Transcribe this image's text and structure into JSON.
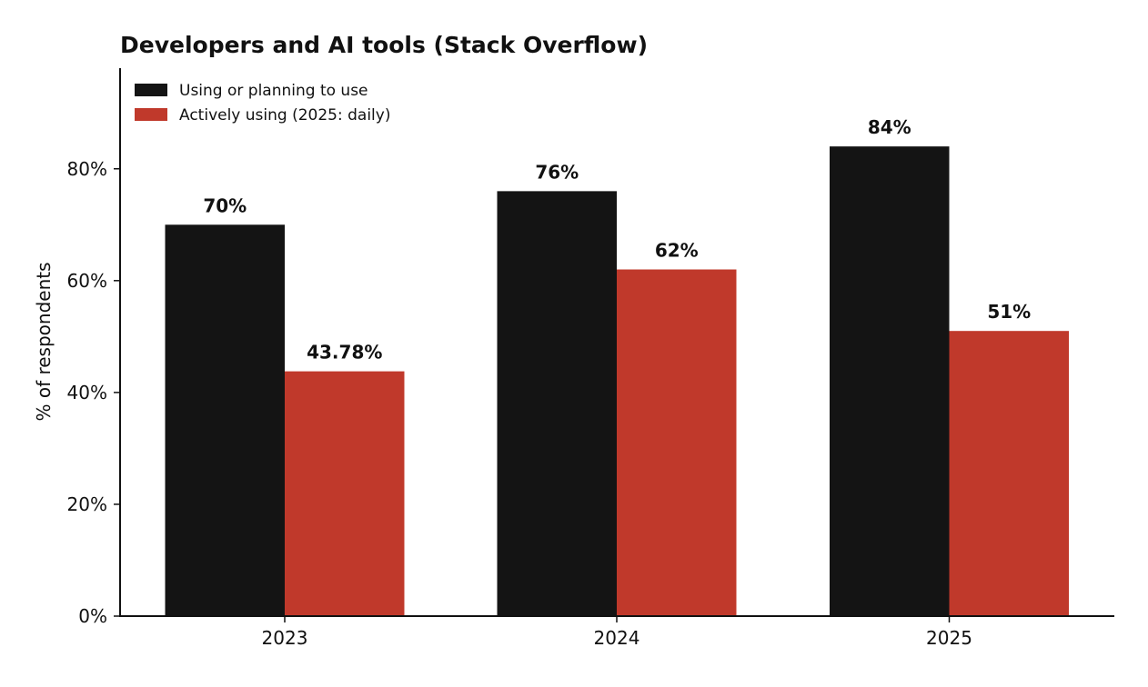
{
  "chart_data": {
    "type": "bar",
    "title": "Developers and AI tools (Stack Overflow)",
    "xlabel": "",
    "ylabel": "% of respondents",
    "categories": [
      "2023",
      "2024",
      "2025"
    ],
    "series": [
      {
        "name": "Using or planning to use",
        "values": [
          70,
          76,
          84
        ],
        "labels": [
          "70%",
          "76%",
          "84%"
        ],
        "color": "#141414"
      },
      {
        "name": "Actively using (2025: daily)",
        "values": [
          43.78,
          62,
          51
        ],
        "labels": [
          "43.78%",
          "62%",
          "51%"
        ],
        "color": "#c0392b"
      }
    ],
    "ylim": [
      0,
      98
    ],
    "yticks": [
      0,
      20,
      40,
      60,
      80
    ],
    "ytick_labels": [
      "0%",
      "20%",
      "40%",
      "60%",
      "80%"
    ],
    "grid": false,
    "legend_position": "top-left"
  }
}
